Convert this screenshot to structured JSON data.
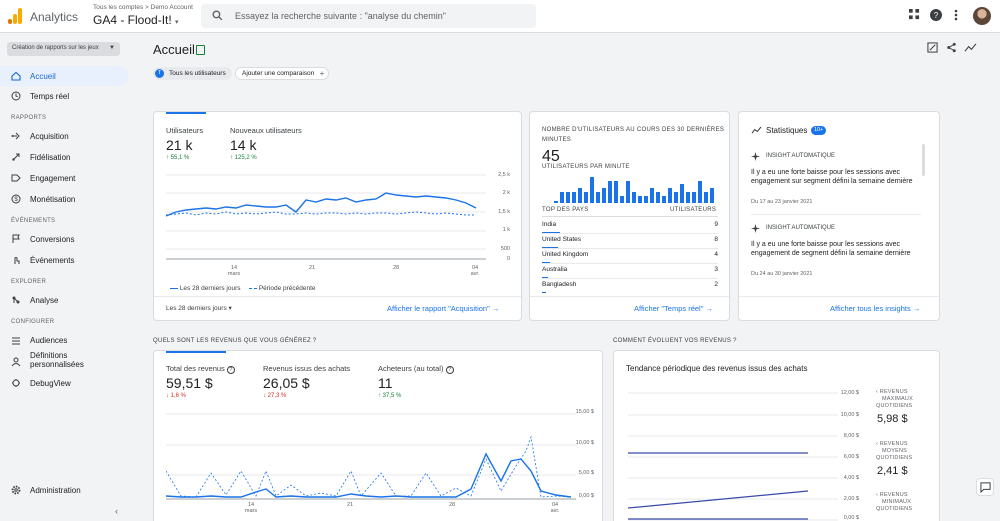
{
  "app": {
    "name": "Analytics",
    "account_path": "Tous les comptes > Demo Account",
    "property_name": "GA4 - Flood-It!",
    "search_placeholder": "Essayez la recherche suivante : \"analyse du chemin\"",
    "logo_colors": [
      "#f9ab00",
      "#e37400"
    ]
  },
  "sidebar": {
    "property_select": "Création de rapports sur les jeux",
    "items_top": [
      {
        "label": "Accueil",
        "icon": "home-icon",
        "active": true
      },
      {
        "label": "Temps réel",
        "icon": "clock-icon"
      }
    ],
    "section_rapports": "RAPPORTS",
    "items_rapports": [
      {
        "label": "Acquisition",
        "icon": "acquisition-icon"
      },
      {
        "label": "Fidélisation",
        "icon": "retention-icon"
      },
      {
        "label": "Engagement",
        "icon": "engagement-icon"
      },
      {
        "label": "Monétisation",
        "icon": "monetization-icon"
      }
    ],
    "section_evenements": "ÉVÉNEMENTS",
    "items_evenements": [
      {
        "label": "Conversions",
        "icon": "flag-icon"
      },
      {
        "label": "Événements",
        "icon": "touch-icon"
      }
    ],
    "section_explorer": "EXPLORER",
    "items_explorer": [
      {
        "label": "Analyse",
        "icon": "analysis-icon"
      }
    ],
    "section_configurer": "CONFIGURER",
    "items_configurer": [
      {
        "label": "Audiences",
        "icon": "audiences-icon"
      },
      {
        "label": "Définitions personnalisées",
        "icon": "definitions-icon"
      },
      {
        "label": "DebugView",
        "icon": "debug-icon"
      }
    ],
    "admin": "Administration",
    "collapse": "‹"
  },
  "page": {
    "title": "Accueil",
    "chip_users_initial": "T",
    "chip_users": "Tous les utilisateurs",
    "chip_compare": "Ajouter une comparaison",
    "chip_compare_plus": "+"
  },
  "card_users": {
    "metrics": [
      {
        "label": "Utilisateurs",
        "value": "21 k",
        "change": "↑ 55,1 %"
      },
      {
        "label": "Nouveaux utilisateurs",
        "value": "14 k",
        "change": "↑ 125,2 %"
      }
    ],
    "y_ticks": [
      "2,5 k",
      "2 k",
      "1,5 k",
      "1 k",
      "500",
      "0"
    ],
    "x_ticks": [
      {
        "d": "14",
        "m": "mars"
      },
      {
        "d": "21",
        "m": ""
      },
      {
        "d": "28",
        "m": ""
      },
      {
        "d": "04",
        "m": "avr."
      }
    ],
    "legend_current": "Les 28 derniers jours",
    "legend_previous": "Période précédente",
    "date_range": "Les 28 derniers jours ▾",
    "link": "Afficher le rapport \"Acquisition\" →"
  },
  "card_realtime": {
    "title_line1": "NOMBRE D'UTILISATEURS AU COURS DES 30 DERNIÈRES",
    "title_line2": "MINUTES",
    "value": "45",
    "subtitle": "UTILISATEURS PAR MINUTE",
    "col_country": "TOP DES PAYS",
    "col_users": "UTILISATEURS",
    "countries": [
      {
        "name": "India",
        "value": "9",
        "share": 0.18
      },
      {
        "name": "United States",
        "value": "8",
        "share": 0.16
      },
      {
        "name": "United Kingdom",
        "value": "4",
        "share": 0.08
      },
      {
        "name": "Australia",
        "value": "3",
        "share": 0.06
      },
      {
        "name": "Bangladesh",
        "value": "2",
        "share": 0.04
      }
    ],
    "link": "Afficher \"Temps réel\" →"
  },
  "card_insights": {
    "title": "Statistiques",
    "badge": "10+",
    "insights": [
      {
        "header": "INSIGHT AUTOMATIQUE",
        "text": "Il y a eu une forte baisse pour les sessions avec engagement sur segment défini la semaine dernière",
        "date": "Du 17 au 23 janvier 2021"
      },
      {
        "header": "INSIGHT AUTOMATIQUE",
        "text": "Il y a eu une forte baisse pour les sessions avec engagement de segment défini la semaine dernière",
        "date": "Du 24 au 30 janvier 2021"
      }
    ],
    "link": "Afficher tous les insights →"
  },
  "section_revenue": "QUELS SONT LES REVENUS QUE VOUS GÉNÉREZ ?",
  "section_trend": "COMMENT ÉVOLUENT VOS REVENUS ?",
  "card_revenue": {
    "metrics": [
      {
        "label": "Total des revenus",
        "value": "59,51 $",
        "change": "↓ 1,6 %",
        "dir": "down"
      },
      {
        "label": "Revenus issus des achats",
        "value": "26,05 $",
        "change": "↓ 27,3 %",
        "dir": "down"
      },
      {
        "label": "Acheteurs (au total)",
        "value": "11",
        "change": "↑ 37,5 %",
        "dir": "up"
      }
    ],
    "y_ticks": [
      "15,00 $",
      "10,00 $",
      "5,00 $",
      "0,00 $"
    ],
    "x_ticks": [
      {
        "d": "14",
        "m": "mars"
      },
      {
        "d": "21",
        "m": ""
      },
      {
        "d": "28",
        "m": ""
      },
      {
        "d": "04",
        "m": "avr."
      }
    ]
  },
  "card_trend": {
    "title": "Tendance périodique des revenus issus des achats",
    "y_ticks": [
      "12,00 $",
      "10,00 $",
      "8,00 $",
      "6,00 $",
      "4,00 $",
      "2,00 $",
      "0,00 $"
    ],
    "side": [
      {
        "label": [
          "REVENUS",
          "MAXIMAUX",
          "QUOTIDIENS"
        ],
        "value": "5,98 $"
      },
      {
        "label": [
          "REVENUS",
          "MOYENS",
          "QUOTIDIENS"
        ],
        "value": "2,41 $"
      },
      {
        "label": [
          "REVENUS",
          "MINIMAUX",
          "QUOTIDIENS"
        ],
        "value": ""
      }
    ]
  },
  "colors": {
    "accent": "#1a73e8",
    "up": "#188038",
    "down": "#d93025",
    "trend": "#3949ab"
  }
}
